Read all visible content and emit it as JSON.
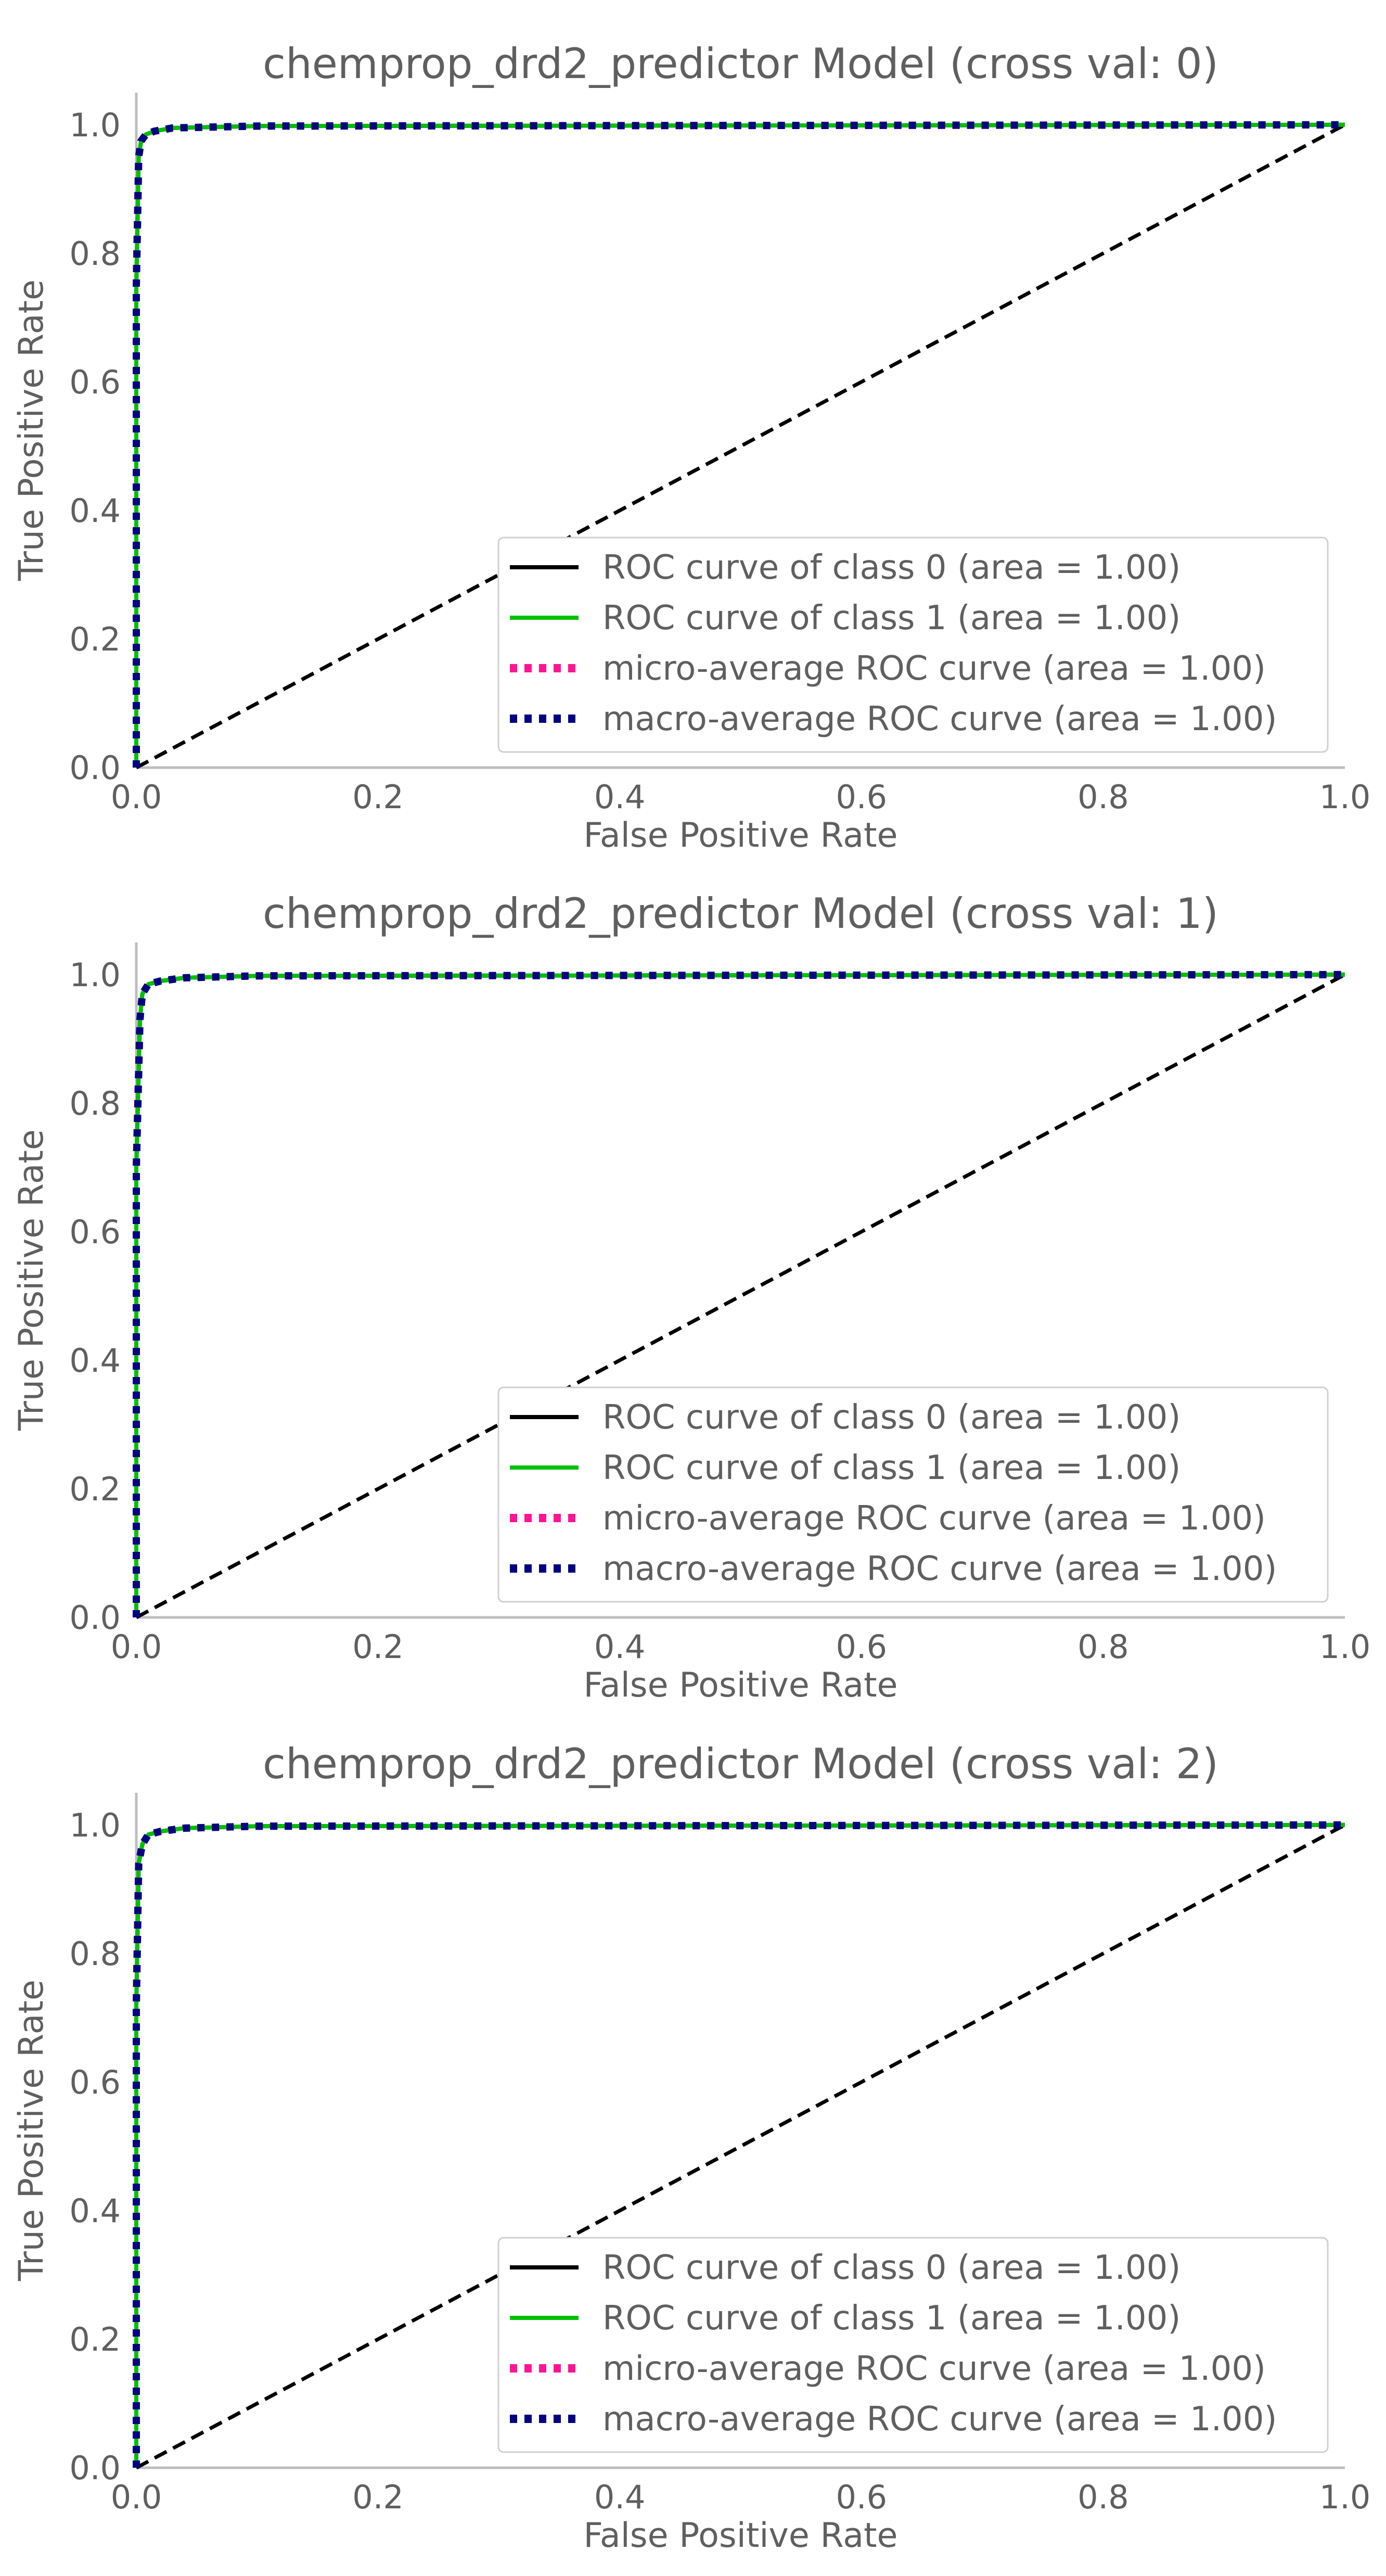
{
  "chart_data": [
    {
      "type": "line",
      "title": "chemprop_drd2_predictor Model (cross val: 0)",
      "xlabel": "False Positive Rate",
      "ylabel": "True Positive Rate",
      "xlim": [
        0.0,
        1.0
      ],
      "ylim": [
        0.0,
        1.05
      ],
      "xticks": [
        "0.0",
        "0.2",
        "0.4",
        "0.6",
        "0.8",
        "1.0"
      ],
      "yticks": [
        "0.0",
        "0.2",
        "0.4",
        "0.6",
        "0.8",
        "1.0"
      ],
      "grid": false,
      "legend_position": "lower-right",
      "series": [
        {
          "name": "ROC curve of class 0 (area = 1.00)",
          "color": "#000000",
          "style": "solid",
          "x": [
            0,
            0,
            0.002,
            0.004,
            0.008,
            0.015,
            0.03,
            0.1,
            1.0
          ],
          "y": [
            0,
            0.75,
            0.95,
            0.975,
            0.985,
            0.99,
            0.995,
            0.998,
            1.0
          ]
        },
        {
          "name": "ROC curve of class 1 (area = 1.00)",
          "color": "#00c000",
          "style": "solid",
          "x": [
            0,
            0,
            0.002,
            0.004,
            0.008,
            0.015,
            0.03,
            0.1,
            1.0
          ],
          "y": [
            0,
            0.75,
            0.95,
            0.975,
            0.985,
            0.99,
            0.995,
            0.998,
            1.0
          ]
        },
        {
          "name": "micro-average ROC curve (area = 1.00)",
          "color": "#ff1493",
          "style": "dotted",
          "x": [
            0,
            0,
            0.002,
            0.004,
            0.008,
            0.015,
            0.03,
            0.1,
            1.0
          ],
          "y": [
            0,
            0.75,
            0.95,
            0.975,
            0.985,
            0.99,
            0.995,
            0.998,
            1.0
          ]
        },
        {
          "name": "macro-average ROC curve (area = 1.00)",
          "color": "#000080",
          "style": "dotted",
          "x": [
            0,
            0,
            0.002,
            0.004,
            0.008,
            0.015,
            0.03,
            0.1,
            1.0
          ],
          "y": [
            0,
            0.75,
            0.95,
            0.975,
            0.985,
            0.99,
            0.995,
            0.998,
            1.0
          ]
        }
      ],
      "diagonal": {
        "color": "#000000",
        "style": "dashed",
        "x": [
          0,
          1
        ],
        "y": [
          0,
          1
        ]
      }
    },
    {
      "type": "line",
      "title": "chemprop_drd2_predictor Model (cross val: 1)",
      "xlabel": "False Positive Rate",
      "ylabel": "True Positive Rate",
      "xlim": [
        0.0,
        1.0
      ],
      "ylim": [
        0.0,
        1.05
      ],
      "xticks": [
        "0.0",
        "0.2",
        "0.4",
        "0.6",
        "0.8",
        "1.0"
      ],
      "yticks": [
        "0.0",
        "0.2",
        "0.4",
        "0.6",
        "0.8",
        "1.0"
      ],
      "grid": false,
      "legend_position": "lower-right",
      "series": [
        {
          "name": "ROC curve of class 0 (area = 1.00)",
          "color": "#000000",
          "style": "solid",
          "x": [
            0,
            0,
            0.003,
            0.005,
            0.01,
            0.02,
            0.04,
            0.1,
            1.0
          ],
          "y": [
            0,
            0.7,
            0.93,
            0.97,
            0.985,
            0.99,
            0.995,
            0.998,
            1.0
          ]
        },
        {
          "name": "ROC curve of class 1 (area = 1.00)",
          "color": "#00c000",
          "style": "solid",
          "x": [
            0,
            0,
            0.003,
            0.005,
            0.01,
            0.02,
            0.04,
            0.1,
            1.0
          ],
          "y": [
            0,
            0.7,
            0.93,
            0.97,
            0.985,
            0.99,
            0.995,
            0.998,
            1.0
          ]
        },
        {
          "name": "micro-average ROC curve (area = 1.00)",
          "color": "#ff1493",
          "style": "dotted",
          "x": [
            0,
            0,
            0.003,
            0.005,
            0.01,
            0.02,
            0.04,
            0.1,
            1.0
          ],
          "y": [
            0,
            0.7,
            0.93,
            0.97,
            0.985,
            0.99,
            0.995,
            0.998,
            1.0
          ]
        },
        {
          "name": "macro-average ROC curve (area = 1.00)",
          "color": "#000080",
          "style": "dotted",
          "x": [
            0,
            0,
            0.003,
            0.005,
            0.01,
            0.02,
            0.04,
            0.1,
            1.0
          ],
          "y": [
            0,
            0.7,
            0.93,
            0.97,
            0.985,
            0.99,
            0.995,
            0.998,
            1.0
          ]
        }
      ],
      "diagonal": {
        "color": "#000000",
        "style": "dashed",
        "x": [
          0,
          1
        ],
        "y": [
          0,
          1
        ]
      }
    },
    {
      "type": "line",
      "title": "chemprop_drd2_predictor Model (cross val: 2)",
      "xlabel": "False Positive Rate",
      "ylabel": "True Positive Rate",
      "xlim": [
        0.0,
        1.0
      ],
      "ylim": [
        0.0,
        1.05
      ],
      "xticks": [
        "0.0",
        "0.2",
        "0.4",
        "0.6",
        "0.8",
        "1.0"
      ],
      "yticks": [
        "0.0",
        "0.2",
        "0.4",
        "0.6",
        "0.8",
        "1.0"
      ],
      "grid": false,
      "legend_position": "lower-right",
      "series": [
        {
          "name": "ROC curve of class 0 (area = 1.00)",
          "color": "#000000",
          "style": "solid",
          "x": [
            0,
            0,
            0.002,
            0.005,
            0.01,
            0.02,
            0.04,
            0.1,
            1.0
          ],
          "y": [
            0,
            0.72,
            0.94,
            0.97,
            0.985,
            0.99,
            0.995,
            0.998,
            1.0
          ]
        },
        {
          "name": "ROC curve of class 1 (area = 1.00)",
          "color": "#00c000",
          "style": "solid",
          "x": [
            0,
            0,
            0.002,
            0.005,
            0.01,
            0.02,
            0.04,
            0.1,
            1.0
          ],
          "y": [
            0,
            0.72,
            0.94,
            0.97,
            0.985,
            0.99,
            0.995,
            0.998,
            1.0
          ]
        },
        {
          "name": "micro-average ROC curve (area = 1.00)",
          "color": "#ff1493",
          "style": "dotted",
          "x": [
            0,
            0,
            0.002,
            0.005,
            0.01,
            0.02,
            0.04,
            0.1,
            1.0
          ],
          "y": [
            0,
            0.72,
            0.94,
            0.97,
            0.985,
            0.99,
            0.995,
            0.998,
            1.0
          ]
        },
        {
          "name": "macro-average ROC curve (area = 1.00)",
          "color": "#000080",
          "style": "dotted",
          "x": [
            0,
            0,
            0.002,
            0.005,
            0.01,
            0.02,
            0.04,
            0.1,
            1.0
          ],
          "y": [
            0,
            0.72,
            0.94,
            0.97,
            0.985,
            0.99,
            0.995,
            0.998,
            1.0
          ]
        }
      ],
      "diagonal": {
        "color": "#000000",
        "style": "dashed",
        "x": [
          0,
          1
        ],
        "y": [
          0,
          1
        ]
      }
    }
  ]
}
